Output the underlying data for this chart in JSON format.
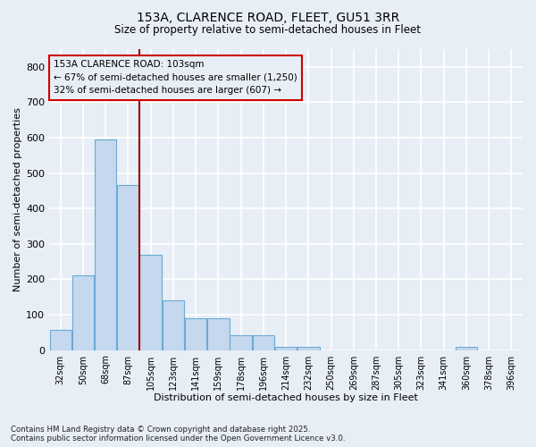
{
  "title_line1": "153A, CLARENCE ROAD, FLEET, GU51 3RR",
  "title_line2": "Size of property relative to semi-detached houses in Fleet",
  "xlabel": "Distribution of semi-detached houses by size in Fleet",
  "ylabel": "Number of semi-detached properties",
  "categories": [
    "32sqm",
    "50sqm",
    "68sqm",
    "87sqm",
    "105sqm",
    "123sqm",
    "141sqm",
    "159sqm",
    "178sqm",
    "196sqm",
    "214sqm",
    "232sqm",
    "250sqm",
    "269sqm",
    "287sqm",
    "305sqm",
    "323sqm",
    "341sqm",
    "360sqm",
    "378sqm",
    "396sqm"
  ],
  "values": [
    58,
    210,
    595,
    465,
    270,
    140,
    90,
    90,
    43,
    43,
    10,
    10,
    0,
    0,
    0,
    0,
    0,
    0,
    8,
    0,
    0
  ],
  "bar_color": "#c5d8ee",
  "bar_edge_color": "#6aaad4",
  "vline_pos": 3.5,
  "vline_color": "#990000",
  "annotation_text_line1": "153A CLARENCE ROAD: 103sqm",
  "annotation_text_line2": "← 67% of semi-detached houses are smaller (1,250)",
  "annotation_text_line3": "32% of semi-detached houses are larger (607) →",
  "annotation_box_color": "#cc0000",
  "ylim": [
    0,
    850
  ],
  "yticks": [
    0,
    100,
    200,
    300,
    400,
    500,
    600,
    700,
    800
  ],
  "bg_color": "#e8eef5",
  "grid_color": "#d0daea",
  "footer_line1": "Contains HM Land Registry data © Crown copyright and database right 2025.",
  "footer_line2": "Contains public sector information licensed under the Open Government Licence v3.0."
}
